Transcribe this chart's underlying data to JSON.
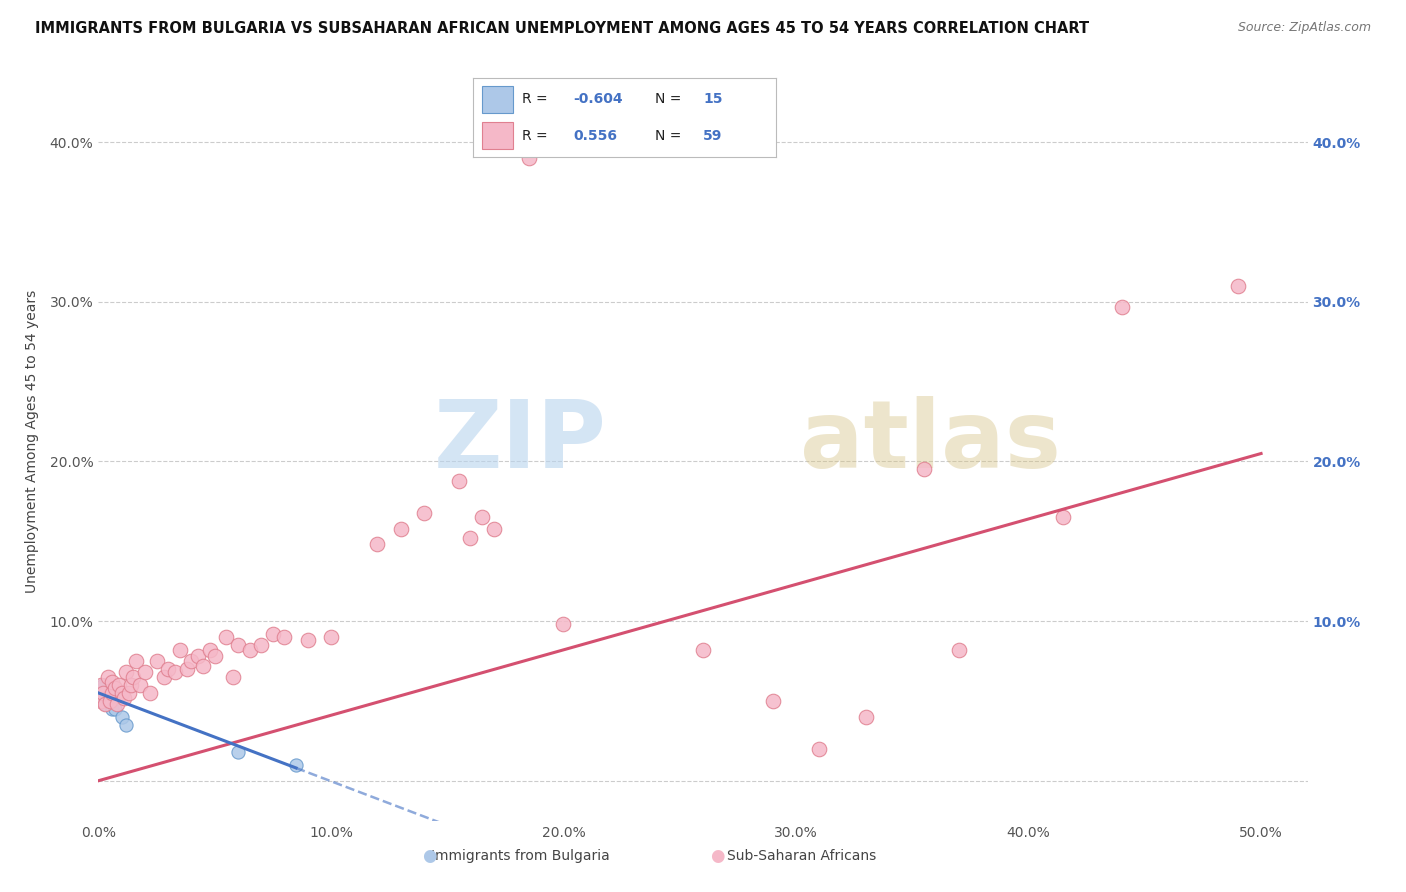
{
  "title": "IMMIGRANTS FROM BULGARIA VS SUBSAHARAN AFRICAN UNEMPLOYMENT AMONG AGES 45 TO 54 YEARS CORRELATION CHART",
  "source": "Source: ZipAtlas.com",
  "ylabel": "Unemployment Among Ages 45 to 54 years",
  "xlim": [
    0.0,
    0.52
  ],
  "ylim": [
    -0.025,
    0.45
  ],
  "xticks": [
    0.0,
    0.1,
    0.2,
    0.3,
    0.4,
    0.5
  ],
  "yticks": [
    0.0,
    0.1,
    0.2,
    0.3,
    0.4
  ],
  "xtick_labels": [
    "0.0%",
    "10.0%",
    "20.0%",
    "30.0%",
    "40.0%",
    "50.0%"
  ],
  "ytick_labels_left": [
    "",
    "10.0%",
    "20.0%",
    "30.0%",
    "40.0%"
  ],
  "ytick_labels_right": [
    "",
    "10.0%",
    "20.0%",
    "30.0%",
    "40.0%"
  ],
  "bg_color": "#ffffff",
  "grid_color": "#cccccc",
  "watermark_zip": "ZIP",
  "watermark_atlas": "atlas",
  "bulgaria_color": "#adc8e8",
  "bulgaria_edge": "#6699cc",
  "subsaharan_color": "#f5b8c8",
  "subsaharan_edge": "#e08090",
  "legend_R_bulgaria": "-0.604",
  "legend_N_bulgaria": "15",
  "legend_R_subsaharan": "0.556",
  "legend_N_subsaharan": "59",
  "bulgaria_trend_color": "#4472c4",
  "subsaharan_trend_color": "#d45070",
  "sub_trend_start_x": 0.0,
  "sub_trend_start_y": 0.0,
  "sub_trend_end_x": 0.5,
  "sub_trend_end_y": 0.205,
  "bul_trend_start_x": 0.0,
  "bul_trend_start_y": 0.055,
  "bul_trend_end_x": 0.085,
  "bul_trend_end_y": 0.008,
  "bulgaria_points_x": [
    0.001,
    0.002,
    0.002,
    0.003,
    0.003,
    0.004,
    0.004,
    0.005,
    0.005,
    0.006,
    0.007,
    0.01,
    0.012,
    0.06,
    0.085
  ],
  "bulgaria_points_y": [
    0.052,
    0.058,
    0.06,
    0.055,
    0.048,
    0.052,
    0.05,
    0.05,
    0.055,
    0.045,
    0.045,
    0.04,
    0.035,
    0.018,
    0.01
  ],
  "subsaharan_points_x": [
    0.001,
    0.001,
    0.002,
    0.003,
    0.004,
    0.005,
    0.006,
    0.006,
    0.007,
    0.008,
    0.009,
    0.01,
    0.011,
    0.012,
    0.013,
    0.014,
    0.015,
    0.016,
    0.018,
    0.02,
    0.022,
    0.025,
    0.028,
    0.03,
    0.033,
    0.035,
    0.038,
    0.04,
    0.043,
    0.045,
    0.048,
    0.05,
    0.055,
    0.058,
    0.06,
    0.065,
    0.07,
    0.075,
    0.08,
    0.09,
    0.1,
    0.12,
    0.13,
    0.14,
    0.155,
    0.16,
    0.165,
    0.17,
    0.185,
    0.2,
    0.26,
    0.29,
    0.31,
    0.33,
    0.355,
    0.37,
    0.415,
    0.44,
    0.49
  ],
  "subsaharan_points_y": [
    0.05,
    0.06,
    0.055,
    0.048,
    0.065,
    0.05,
    0.055,
    0.062,
    0.058,
    0.048,
    0.06,
    0.055,
    0.052,
    0.068,
    0.055,
    0.06,
    0.065,
    0.075,
    0.06,
    0.068,
    0.055,
    0.075,
    0.065,
    0.07,
    0.068,
    0.082,
    0.07,
    0.075,
    0.078,
    0.072,
    0.082,
    0.078,
    0.09,
    0.065,
    0.085,
    0.082,
    0.085,
    0.092,
    0.09,
    0.088,
    0.09,
    0.148,
    0.158,
    0.168,
    0.188,
    0.152,
    0.165,
    0.158,
    0.39,
    0.098,
    0.082,
    0.05,
    0.02,
    0.04,
    0.195,
    0.082,
    0.165,
    0.297,
    0.31
  ]
}
